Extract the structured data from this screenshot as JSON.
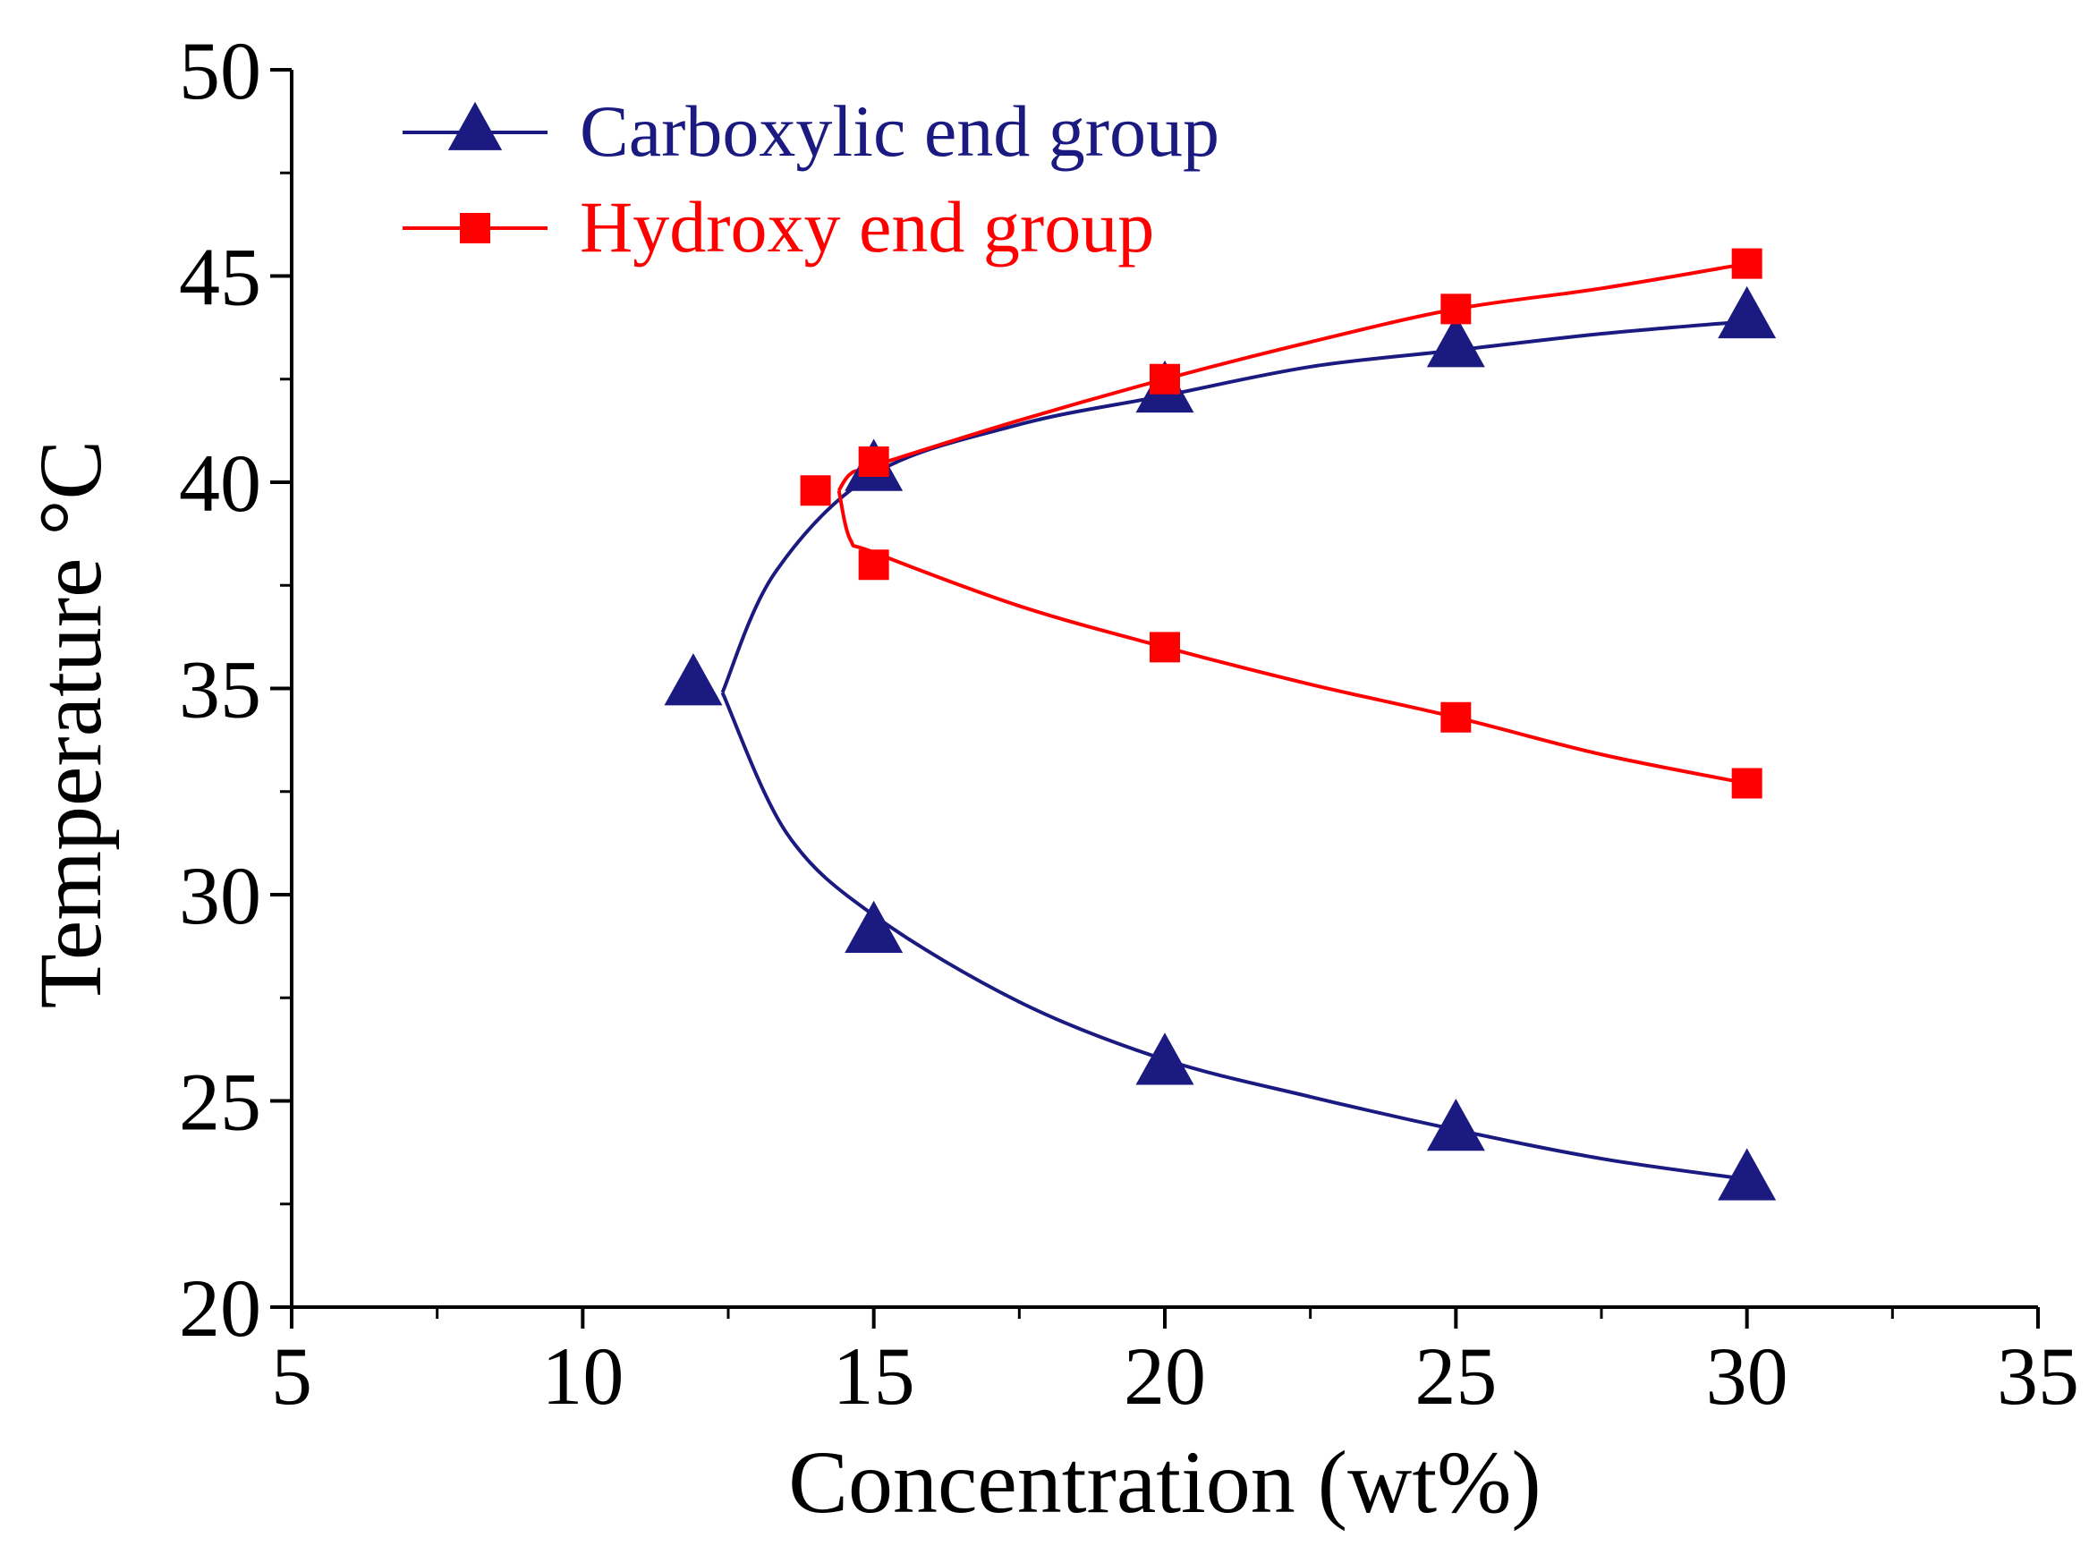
{
  "chart_data": {
    "type": "scatter",
    "title": "",
    "xlabel": "Concentration (wt%)",
    "ylabel": "Temperature °C",
    "xlim": [
      5,
      35
    ],
    "ylim": [
      20,
      50
    ],
    "x_major_ticks": [
      5,
      10,
      15,
      20,
      25,
      30,
      35
    ],
    "x_tick_labels": [
      "5",
      "10",
      "15",
      "20",
      "25",
      "30",
      "35"
    ],
    "y_major_ticks": [
      20,
      25,
      30,
      35,
      40,
      45,
      50
    ],
    "y_tick_labels": [
      "20",
      "25",
      "30",
      "35",
      "40",
      "45",
      "50"
    ],
    "legend_position": "top-left",
    "series": [
      {
        "name": "Carboxylic end group",
        "color": "#1a1a80",
        "marker": "triangle",
        "points": [
          {
            "x": 11.9,
            "y": 35.1
          },
          {
            "x": 15,
            "y": 29.1
          },
          {
            "x": 15,
            "y": 40.3
          },
          {
            "x": 20,
            "y": 25.9
          },
          {
            "x": 20,
            "y": 42.2
          },
          {
            "x": 25,
            "y": 24.3
          },
          {
            "x": 25,
            "y": 43.3
          },
          {
            "x": 30,
            "y": 23.1
          },
          {
            "x": 30,
            "y": 44.0
          }
        ],
        "fit_lower": [
          [
            12.4,
            34.9
          ],
          [
            13.5,
            31.5
          ],
          [
            15,
            29.5
          ],
          [
            17.5,
            27.4
          ],
          [
            20,
            26.0
          ],
          [
            22.5,
            25.1
          ],
          [
            25,
            24.3
          ],
          [
            27.5,
            23.6
          ],
          [
            30,
            23.1
          ]
        ],
        "fit_upper": [
          [
            12.4,
            34.9
          ],
          [
            13.3,
            37.8
          ],
          [
            15,
            40.2
          ],
          [
            17.5,
            41.4
          ],
          [
            20,
            42.1
          ],
          [
            22.5,
            42.8
          ],
          [
            25,
            43.2
          ],
          [
            27.5,
            43.6
          ],
          [
            30,
            43.9
          ]
        ]
      },
      {
        "name": "Hydroxy end group",
        "color": "#ff0000",
        "marker": "square",
        "points": [
          {
            "x": 14,
            "y": 39.8
          },
          {
            "x": 15,
            "y": 38.0
          },
          {
            "x": 15,
            "y": 40.5
          },
          {
            "x": 20,
            "y": 36.0
          },
          {
            "x": 20,
            "y": 42.5
          },
          {
            "x": 25,
            "y": 34.3
          },
          {
            "x": 25,
            "y": 44.2
          },
          {
            "x": 30,
            "y": 32.7
          },
          {
            "x": 30,
            "y": 45.3
          }
        ],
        "fit_lower": [
          [
            14.4,
            39.8
          ],
          [
            14.6,
            38.6
          ],
          [
            15,
            38.3
          ],
          [
            17.5,
            37.0
          ],
          [
            20,
            36.0
          ],
          [
            22.5,
            35.1
          ],
          [
            25,
            34.3
          ],
          [
            27.5,
            33.4
          ],
          [
            30,
            32.7
          ]
        ],
        "fit_upper": [
          [
            14.4,
            39.8
          ],
          [
            14.6,
            40.2
          ],
          [
            15,
            40.4
          ],
          [
            17.5,
            41.5
          ],
          [
            20,
            42.5
          ],
          [
            22.5,
            43.4
          ],
          [
            25,
            44.2
          ],
          [
            27.5,
            44.7
          ],
          [
            30,
            45.3
          ]
        ]
      }
    ]
  }
}
